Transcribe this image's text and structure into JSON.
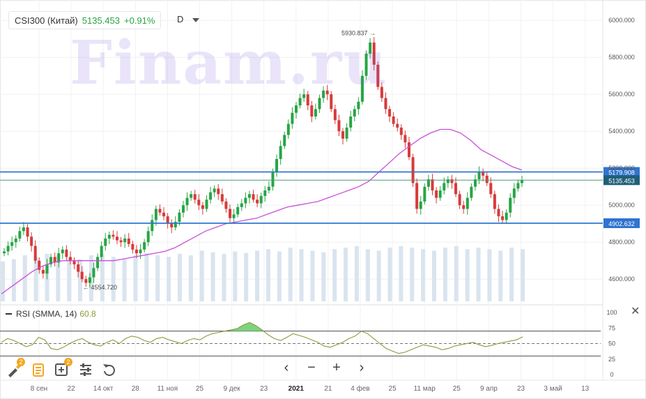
{
  "header": {
    "symbol": "CSI300 (Китай)",
    "price": "5135.453",
    "change": "+0.91%",
    "timeframe": "D"
  },
  "watermark": "Finam.ru",
  "rsi": {
    "label": "RSI (SMMA, 14)",
    "value": "60.8",
    "levels": [
      30,
      50,
      70
    ]
  },
  "colors": {
    "up": "#27a544",
    "down": "#d83a3a",
    "ma": "#c84fd8",
    "hline": "#2f74d0",
    "rsi": "#8a9a3c",
    "rsi_fill": "#6fcf6f",
    "volume": "#d9e4ef"
  },
  "chart_data": [
    {
      "type": "candlestick",
      "x_tick_labels": [
        "8 сен",
        "22",
        "14 окт",
        "28",
        "11 ноя",
        "25",
        "9 дек",
        "23",
        "2021",
        "21",
        "4 фев",
        "25",
        "11 мар",
        "25",
        "9 апр",
        "23",
        "3 май",
        "13"
      ],
      "y_ticks": [
        4600,
        4800,
        5000,
        5200,
        5400,
        5600,
        5800,
        6000
      ],
      "ylim": [
        4480,
        6080
      ],
      "horizontal_lines": [
        {
          "value": 5179.908,
          "label": "5179.908"
        },
        {
          "value": 5135.453,
          "label": "5135.453"
        },
        {
          "value": 4902.632,
          "label": "4902.632"
        }
      ],
      "annotations": [
        {
          "text": "5930.837",
          "value": 5930.837
        },
        {
          "text": "4554.720",
          "value": 4554.72
        }
      ],
      "close_approx": [
        4750,
        4780,
        4800,
        4820,
        4860,
        4880,
        4830,
        4780,
        4700,
        4650,
        4630,
        4680,
        4720,
        4690,
        4740,
        4760,
        4720,
        4700,
        4680,
        4640,
        4600,
        4580,
        4610,
        4660,
        4720,
        4780,
        4820,
        4840,
        4830,
        4810,
        4800,
        4820,
        4790,
        4760,
        4740,
        4760,
        4800,
        4860,
        4920,
        4980,
        4960,
        4940,
        4900,
        4880,
        4910,
        4960,
        5000,
        5040,
        5060,
        5030,
        5000,
        4980,
        5030,
        5070,
        5090,
        5060,
        5020,
        4980,
        4930,
        4950,
        4990,
        5010,
        5040,
        5060,
        5030,
        5010,
        5050,
        5080,
        5100,
        5180,
        5250,
        5320,
        5380,
        5440,
        5500,
        5540,
        5580,
        5600,
        5540,
        5480,
        5520,
        5580,
        5620,
        5600,
        5520,
        5460,
        5400,
        5360,
        5420,
        5480,
        5520,
        5560,
        5700,
        5820,
        5880,
        5760,
        5640,
        5580,
        5520,
        5480,
        5440,
        5420,
        5380,
        5340,
        5260,
        5120,
        4980,
        5020,
        5100,
        5140,
        5080,
        5040,
        5080,
        5120,
        5140,
        5120,
        5060,
        5000,
        4980,
        5040,
        5100,
        5140,
        5180,
        5160,
        5120,
        5060,
        4980,
        4940,
        4920,
        4960,
        5040,
        5090,
        5120,
        5135.453
      ],
      "ma_approx": [
        4520,
        4560,
        4600,
        4640,
        4670,
        4690,
        4700,
        4700,
        4700,
        4700,
        4700,
        4700,
        4710,
        4720,
        4730,
        4740,
        4750,
        4770,
        4800,
        4830,
        4860,
        4880,
        4900,
        4910,
        4920,
        4930,
        4950,
        4970,
        4990,
        5000,
        5010,
        5020,
        5040,
        5060,
        5080,
        5100,
        5130,
        5180,
        5230,
        5280,
        5320,
        5360,
        5390,
        5410,
        5410,
        5390,
        5350,
        5300,
        5270,
        5240,
        5210,
        5190
      ],
      "volume_approx": [
        0.52,
        0.55,
        0.6,
        0.58,
        0.62,
        0.6,
        0.57,
        0.55,
        0.6,
        0.62,
        0.58,
        0.55,
        0.6,
        0.63,
        0.6,
        0.58,
        0.62,
        0.6,
        0.66,
        0.64,
        0.62,
        0.65,
        0.63,
        0.66,
        0.68,
        0.65,
        0.7,
        0.68,
        0.66,
        0.64,
        0.68,
        0.7,
        0.72,
        0.68,
        0.66,
        0.7,
        0.72,
        0.7,
        0.68,
        0.66,
        0.7,
        0.72,
        0.68,
        0.7,
        0.68,
        0.66,
        0.7,
        0.68
      ]
    },
    {
      "type": "line",
      "name": "RSI (SMMA, 14)",
      "ylim": [
        0,
        100
      ],
      "y_ticks": [
        0,
        25,
        50,
        75,
        100
      ],
      "values_approx": [
        52,
        58,
        55,
        50,
        45,
        48,
        60,
        56,
        42,
        40,
        44,
        50,
        55,
        58,
        52,
        48,
        46,
        52,
        56,
        50,
        58,
        62,
        60,
        55,
        52,
        58,
        60,
        56,
        53,
        50,
        55,
        58,
        56,
        62,
        66,
        68,
        70,
        72,
        74,
        80,
        84,
        79,
        72,
        64,
        58,
        55,
        60,
        66,
        63,
        60,
        56,
        52,
        46,
        44,
        48,
        52,
        58,
        62,
        70,
        66,
        58,
        50,
        42,
        38,
        34,
        36,
        40,
        44,
        48,
        46,
        44,
        40,
        42,
        46,
        48,
        50,
        52,
        48,
        45,
        47,
        50,
        52,
        54,
        56,
        60.8
      ]
    }
  ],
  "toolbar": {
    "badge1": "2",
    "badge2": "2"
  }
}
